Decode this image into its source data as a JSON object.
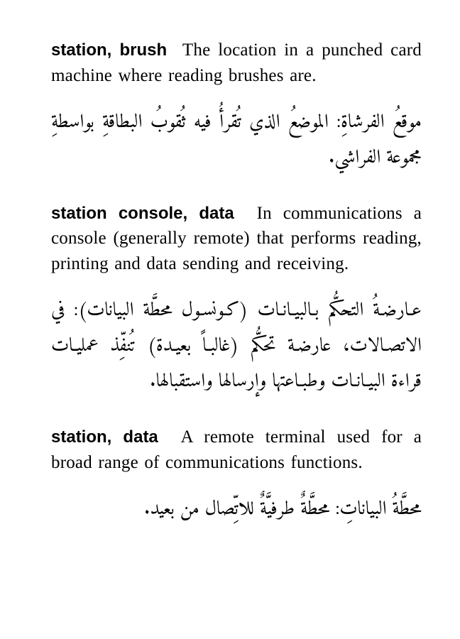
{
  "entries": [
    {
      "term": "station, brush",
      "def_en": "The location in a punched card machine where reading brushes are.",
      "def_ar": "موقعُ الفرشاةِ: الموضعُ الذي تُقرأُ فيه ثُقوبُ البطاقةِ بواسطةِ مجموعة الفراشي."
    },
    {
      "term": "station console, data",
      "def_en": "In communications a console (generally remote) that performs reading, printing and data sending and receiving.",
      "def_ar": "عـارضـةُ التحكُّم بـالبيـانـات (كـونسـول محطَّة البيانات): في الاتصـالات، عارضـة تحكُّم (غالبـاً بعيـدة) تُنفِّذ عمليـات قراءة البيـانـات وطبـاعتها وإرسالها واستقبالها."
    },
    {
      "term": "station, data",
      "def_en": "A remote terminal used for a broad range of communications functions.",
      "def_ar": "محطَّةُ البياناتِ: محطَّةٌ طرفيَّةٌ للاتِّصال من بعيد."
    }
  ]
}
